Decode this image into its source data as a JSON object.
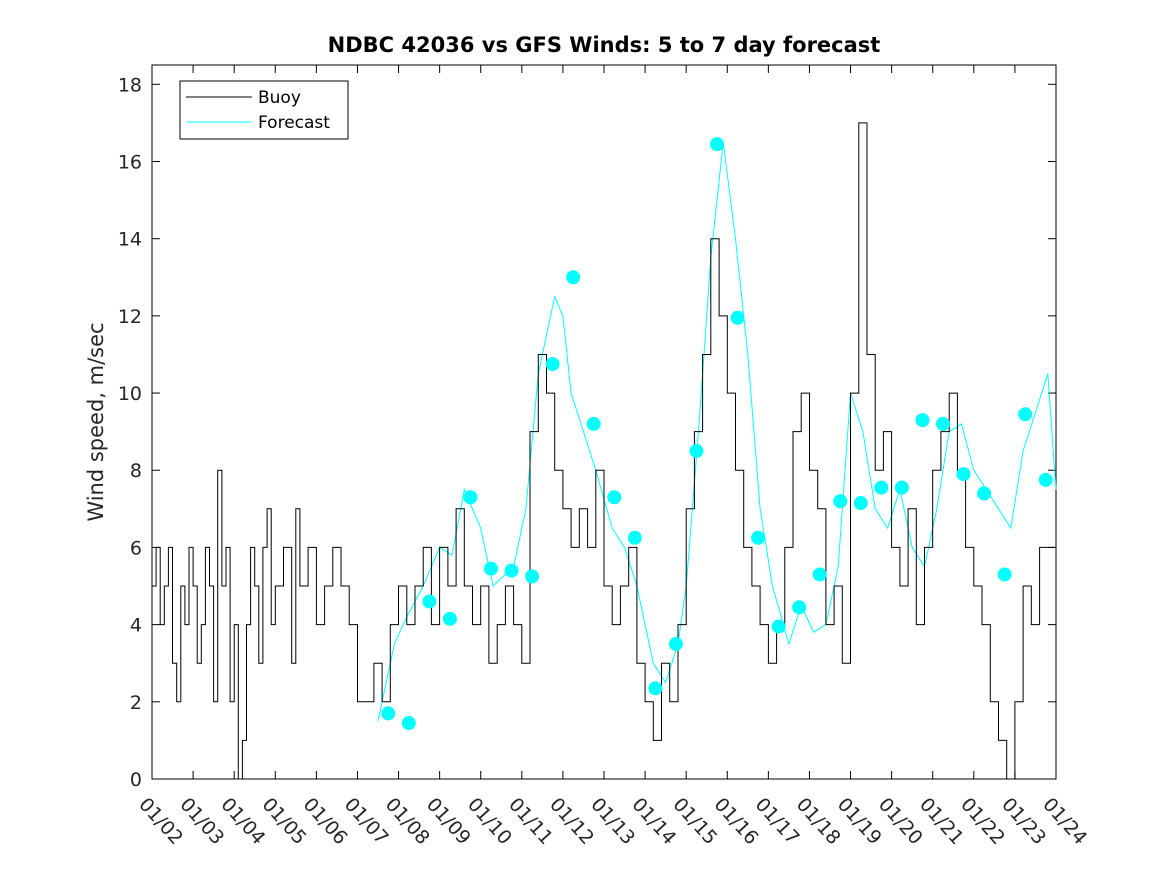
{
  "chart_data": {
    "type": "line",
    "title": "NDBC 42036 vs GFS Winds: 5 to 7 day forecast",
    "xlabel": "",
    "ylabel": "Wind speed, m/sec",
    "xlim": [
      0,
      22
    ],
    "ylim": [
      0,
      18.5
    ],
    "x_tick_labels": [
      "01/02",
      "01/03",
      "01/04",
      "01/05",
      "01/06",
      "01/07",
      "01/08",
      "01/09",
      "01/10",
      "01/11",
      "01/12",
      "01/13",
      "01/14",
      "01/15",
      "01/16",
      "01/17",
      "01/18",
      "01/19",
      "01/20",
      "01/21",
      "01/22",
      "01/23",
      "01/24"
    ],
    "y_ticks": [
      0,
      2,
      4,
      6,
      8,
      10,
      12,
      14,
      16,
      18
    ],
    "legend": {
      "position": "top-left",
      "entries": [
        {
          "label": "Buoy",
          "color": "#000000"
        },
        {
          "label": "Forecast",
          "color": "#00ffff"
        }
      ]
    },
    "series": [
      {
        "name": "Buoy",
        "color": "#000000",
        "x": [
          0,
          0.1,
          0.2,
          0.3,
          0.4,
          0.5,
          0.6,
          0.7,
          0.8,
          0.9,
          1.0,
          1.1,
          1.2,
          1.3,
          1.4,
          1.5,
          1.6,
          1.7,
          1.8,
          1.9,
          2.0,
          2.1,
          2.2,
          2.3,
          2.4,
          2.5,
          2.6,
          2.7,
          2.8,
          2.9,
          3.0,
          3.2,
          3.4,
          3.5,
          3.6,
          3.8,
          4.0,
          4.2,
          4.4,
          4.6,
          4.8,
          5.0,
          5.2,
          5.4,
          5.6,
          5.8,
          6.0,
          6.2,
          6.4,
          6.6,
          6.8,
          7.0,
          7.2,
          7.4,
          7.6,
          7.8,
          8.0,
          8.2,
          8.4,
          8.6,
          8.8,
          9.0,
          9.2,
          9.4,
          9.6,
          9.8,
          10.0,
          10.2,
          10.4,
          10.6,
          10.8,
          11.0,
          11.2,
          11.4,
          11.6,
          11.8,
          12.0,
          12.2,
          12.4,
          12.6,
          12.8,
          13.0,
          13.2,
          13.4,
          13.6,
          13.8,
          14.0,
          14.2,
          14.4,
          14.6,
          14.8,
          15.0,
          15.2,
          15.4,
          15.6,
          15.8,
          16.0,
          16.2,
          16.4,
          16.6,
          16.8,
          17.0,
          17.2,
          17.4,
          17.6,
          17.8,
          18.0,
          18.2,
          18.4,
          18.6,
          18.8,
          19.0,
          19.2,
          19.4,
          19.6,
          19.8,
          20.0,
          20.2,
          20.4,
          20.6,
          20.8,
          21.0,
          21.2,
          21.4,
          21.6,
          21.8,
          22.0
        ],
        "values": [
          5,
          6,
          4,
          5,
          6,
          3,
          2,
          5,
          4,
          6,
          5,
          3,
          4,
          6,
          5,
          2,
          8,
          5,
          6,
          2,
          4,
          0,
          1,
          4,
          6,
          5,
          3,
          6,
          7,
          4,
          5,
          6,
          3,
          7,
          5,
          6,
          4,
          5,
          6,
          5,
          4,
          2,
          2,
          3,
          2,
          4,
          5,
          4,
          5,
          6,
          4,
          6,
          5,
          7,
          5,
          4,
          5,
          3,
          4,
          5,
          4,
          3,
          9,
          11,
          10,
          8,
          7,
          6,
          7,
          6,
          8,
          5,
          4,
          5,
          6,
          3,
          2,
          1,
          3,
          2,
          4,
          7,
          9,
          11,
          14,
          12,
          10,
          8,
          6,
          5,
          4,
          3,
          4,
          6,
          9,
          10,
          8,
          7,
          4,
          5,
          3,
          10,
          17,
          11,
          8,
          9,
          6,
          5,
          7,
          4,
          6,
          8,
          9,
          10,
          8,
          6,
          5,
          4,
          2,
          1,
          0,
          2,
          5,
          4,
          6,
          6,
          5
        ]
      },
      {
        "name": "Forecast",
        "color": "#00ffff",
        "x": [
          5.5,
          5.9,
          6.2,
          6.6,
          6.8,
          7.0,
          7.3,
          7.6,
          8.0,
          8.3,
          8.5,
          8.8,
          9.1,
          9.4,
          9.8,
          10.0,
          10.2,
          10.5,
          10.8,
          11.2,
          11.5,
          11.8,
          12.2,
          12.5,
          12.8,
          13.0,
          13.3,
          13.6,
          13.9,
          14.2,
          14.5,
          14.8,
          15.1,
          15.5,
          15.8,
          16.1,
          16.4,
          16.7,
          17.0,
          17.3,
          17.6,
          17.9,
          18.2,
          18.5,
          18.8,
          19.1,
          19.4,
          19.7,
          20.0,
          20.3,
          20.6,
          20.9,
          21.2,
          21.5,
          21.8,
          22.0
        ],
        "values": [
          1.5,
          3.5,
          4.2,
          5.0,
          5.5,
          6.0,
          5.8,
          7.5,
          6.5,
          5.0,
          5.2,
          5.5,
          7.0,
          10.5,
          12.5,
          12.0,
          10.0,
          9.0,
          8.0,
          6.5,
          6.0,
          5.0,
          3.0,
          2.5,
          3.5,
          5.0,
          9.0,
          13.5,
          16.5,
          14.0,
          11.0,
          7.0,
          5.0,
          3.5,
          4.5,
          3.8,
          4.0,
          5.5,
          10.0,
          9.0,
          7.0,
          6.5,
          7.5,
          6.0,
          5.5,
          7.0,
          9.0,
          9.2,
          8.0,
          7.5,
          7.0,
          6.5,
          8.5,
          9.5,
          10.5,
          7.5
        ]
      },
      {
        "name": "Forecast points",
        "color": "#00ffff",
        "x": [
          5.75,
          6.25,
          6.75,
          7.25,
          7.75,
          8.25,
          8.75,
          9.25,
          9.75,
          10.25,
          10.75,
          11.25,
          11.75,
          12.25,
          12.75,
          13.25,
          13.75,
          14.25,
          14.75,
          15.25,
          15.75,
          16.25,
          16.75,
          17.25,
          17.75,
          18.25,
          18.75,
          19.25,
          19.75,
          20.25,
          20.75,
          21.25,
          21.75
        ],
        "values": [
          1.7,
          1.45,
          4.6,
          4.15,
          7.3,
          5.45,
          5.4,
          5.25,
          10.75,
          13.0,
          9.2,
          7.3,
          6.25,
          2.35,
          3.5,
          8.5,
          16.45,
          11.95,
          6.25,
          3.95,
          4.45,
          5.3,
          7.2,
          7.15,
          7.55,
          7.55,
          9.3,
          9.2,
          7.9,
          7.4,
          5.3,
          9.45,
          7.75
        ]
      }
    ]
  }
}
